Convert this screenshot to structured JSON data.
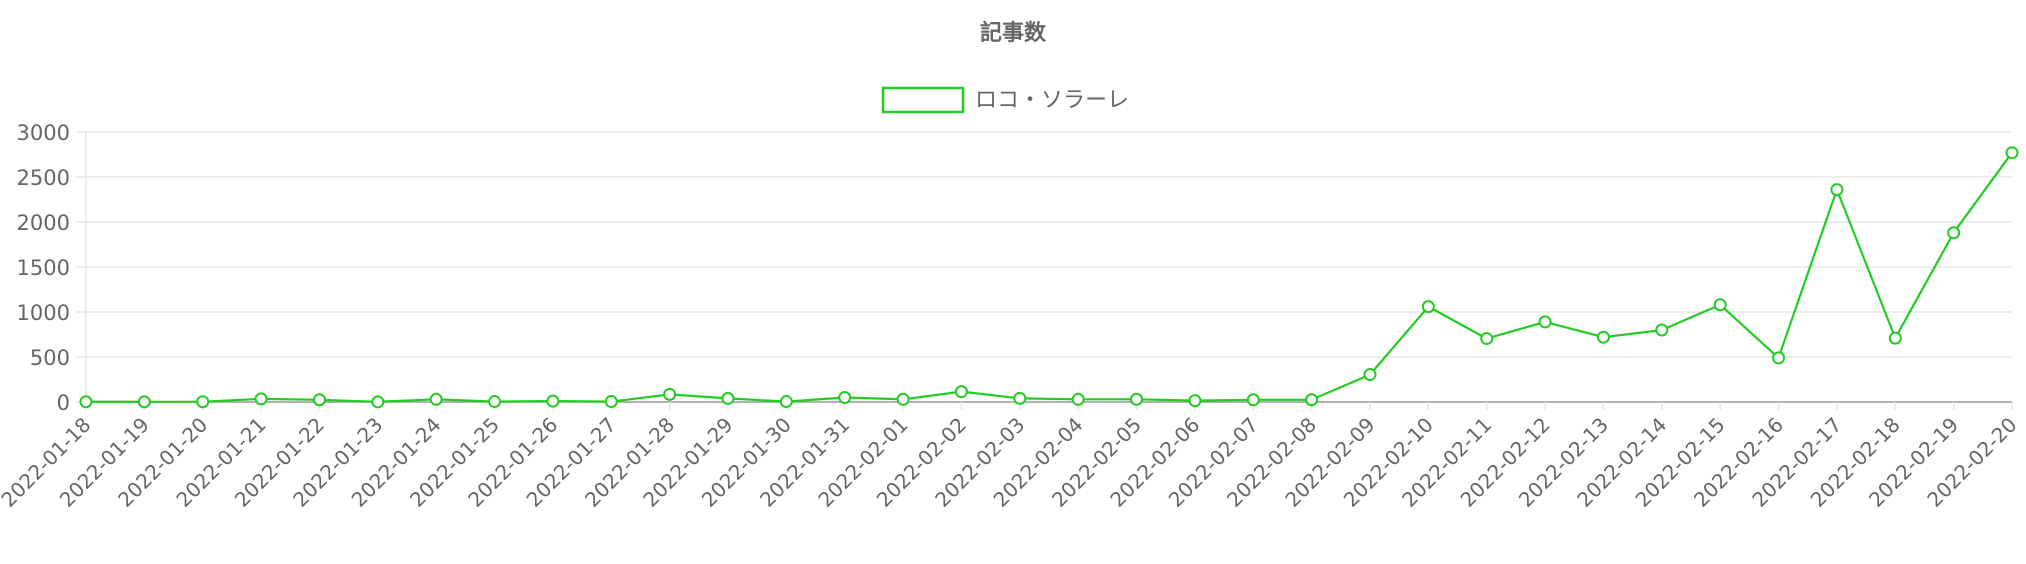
{
  "colors": {
    "series": "#22cc22",
    "grid": "#e0e0e0",
    "axis": "#999999",
    "text": "#666666",
    "title": "#666666"
  },
  "chart_data": {
    "type": "line",
    "title": "記事数",
    "xlabel": "",
    "ylabel": "",
    "legend_position": "top",
    "grid": true,
    "ylim": [
      0,
      3000
    ],
    "yticks": [
      0,
      500,
      1000,
      1500,
      2000,
      2500,
      3000
    ],
    "categories": [
      "2022-01-18",
      "2022-01-19",
      "2022-01-20",
      "2022-01-21",
      "2022-01-22",
      "2022-01-23",
      "2022-01-24",
      "2022-01-25",
      "2022-01-26",
      "2022-01-27",
      "2022-01-28",
      "2022-01-29",
      "2022-01-30",
      "2022-01-31",
      "2022-02-01",
      "2022-02-02",
      "2022-02-03",
      "2022-02-04",
      "2022-02-05",
      "2022-02-06",
      "2022-02-07",
      "2022-02-08",
      "2022-02-09",
      "2022-02-10",
      "2022-02-11",
      "2022-02-12",
      "2022-02-13",
      "2022-02-14",
      "2022-02-15",
      "2022-02-16",
      "2022-02-17",
      "2022-02-18",
      "2022-02-19",
      "2022-02-20"
    ],
    "series": [
      {
        "name": "ロコ・ソラーレ",
        "values": [
          3,
          2,
          3,
          35,
          25,
          2,
          30,
          5,
          10,
          5,
          85,
          40,
          5,
          50,
          30,
          115,
          40,
          30,
          30,
          15,
          25,
          25,
          305,
          1060,
          705,
          890,
          720,
          800,
          1080,
          490,
          2360,
          710,
          1880,
          2770
        ]
      }
    ]
  }
}
